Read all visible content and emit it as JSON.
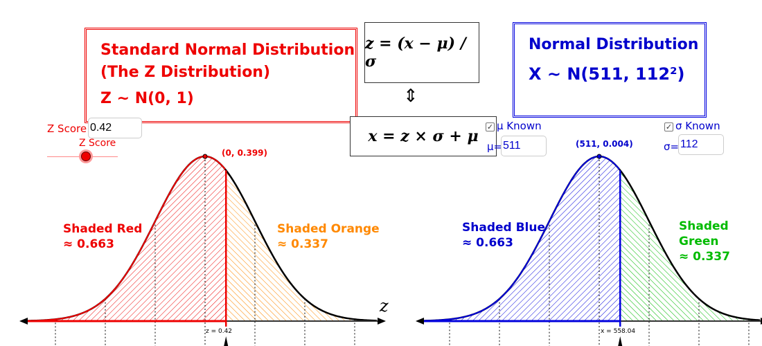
{
  "left_box": {
    "line1": "Standard Normal Distribution",
    "line2": "(The Z Distribution)",
    "line3": "Z ∼ N(0, 1)"
  },
  "right_box": {
    "line1": "Normal Distribution",
    "line2": "X ∼ N(511, 112²)"
  },
  "formula_top": "z = (x − μ) / σ",
  "formula_arrow": "⇕",
  "formula_bottom": "x = z × σ + μ",
  "zscore": {
    "label": "Z Score",
    "value": "0.42",
    "slider_label": "Z Score",
    "slider_value": 0.42
  },
  "mu": {
    "checkbox_label": "μ Known",
    "checked": true,
    "label": "μ=",
    "value": "511"
  },
  "sigma": {
    "checkbox_label": "σ Known",
    "checked": true,
    "label": "σ=",
    "value": "112"
  },
  "left_plot": {
    "peak_label": "(0, 0.399)",
    "shaded_left_label": "Shaded Red",
    "shaded_left_value": "≈ 0.663",
    "shaded_right_label": "Shaded Orange",
    "shaded_right_value": "≈ 0.337",
    "axis_label": "z",
    "marker_label": "z = 0.42",
    "mean": 0,
    "sd": 1,
    "cut": 0.42
  },
  "right_plot": {
    "peak_label": "(511, 0.004)",
    "shaded_left_label": "Shaded Blue",
    "shaded_left_value": "≈ 0.663",
    "shaded_right_label": "Shaded Green",
    "shaded_right_value": "≈ 0.337",
    "marker_label": "x = 558.04",
    "mean": 511,
    "sd": 112,
    "cut": 558.04
  },
  "colors": {
    "red": "#ee0000",
    "orange": "#ff8800",
    "blue": "#0000dd",
    "green": "#00bb00"
  }
}
